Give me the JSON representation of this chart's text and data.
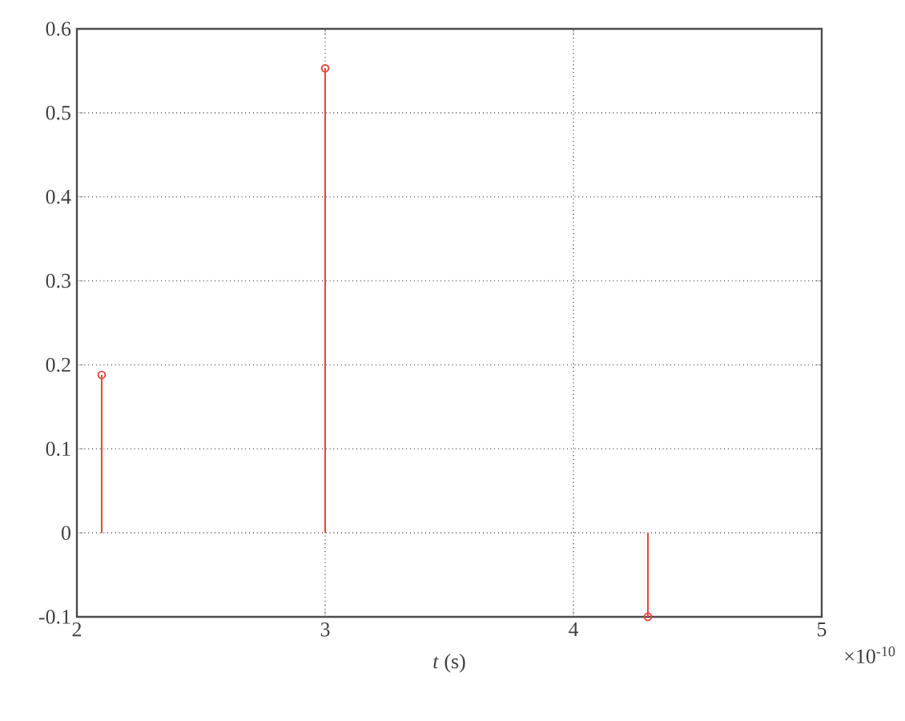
{
  "chart_data": {
    "type": "lollipop",
    "xlabel": "*t* (s)",
    "annotations": [
      "×10$^{-10}$"
    ],
    "x": [
      2.1,
      3,
      4.3
    ],
    "values": [
      0.188,
      0.553,
      -0.1
    ],
    "color": "#e8463c",
    "marker": "circle",
    "grid": true,
    "xlim": [
      2,
      5
    ],
    "xticks": [
      2,
      3,
      4,
      5
    ],
    "ylim": [
      -0.1,
      0.6
    ],
    "yticks": [
      -0.1,
      0,
      0.1,
      0.2,
      0.3,
      0.4,
      0.5,
      0.6
    ]
  }
}
